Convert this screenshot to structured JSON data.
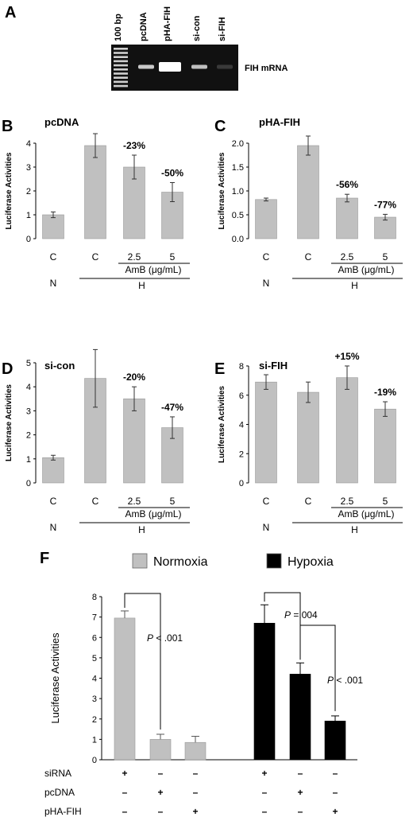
{
  "panel_a": {
    "label": "A",
    "lanes": [
      "100 bp",
      "pcDNA",
      "pHA-FIH",
      "si-con",
      "si-FIH"
    ],
    "band_label": "FIH mRNA",
    "band_intensity": [
      1,
      0.75,
      1.0,
      0.7,
      0.08
    ]
  },
  "chart_data": [
    {
      "panel": "B",
      "type": "bar",
      "title": "pcDNA",
      "ylabel": "Luciferase Activities",
      "categories": [
        "C",
        "C",
        "2.5",
        "5"
      ],
      "values": [
        1.0,
        3.9,
        3.0,
        1.95
      ],
      "errors": [
        0.12,
        0.5,
        0.5,
        0.4
      ],
      "annotations": [
        "",
        "",
        "-23%",
        "-50%"
      ],
      "ylim": [
        0,
        4
      ],
      "yticks": [
        "0",
        "1",
        "2",
        "3",
        "4"
      ],
      "group_labels": {
        "amb": "AmB (μg/mL)",
        "normoxia": "N",
        "hypoxia": "H"
      },
      "bar_color": "#c0c0c0"
    },
    {
      "panel": "C",
      "type": "bar",
      "title": "pHA-FIH",
      "ylabel": "Luciferase Activities",
      "categories": [
        "C",
        "C",
        "2.5",
        "5"
      ],
      "values": [
        0.82,
        1.95,
        0.85,
        0.45
      ],
      "errors": [
        0.03,
        0.2,
        0.08,
        0.06
      ],
      "annotations": [
        "",
        "",
        "-56%",
        "-77%"
      ],
      "ylim": [
        0,
        2
      ],
      "yticks": [
        "0.0",
        "0.5",
        "1.0",
        "1.5",
        "2.0"
      ],
      "group_labels": {
        "amb": "AmB (μg/mL)",
        "normoxia": "N",
        "hypoxia": "H"
      },
      "bar_color": "#c0c0c0"
    },
    {
      "panel": "D",
      "type": "bar",
      "title": "si-con",
      "ylabel": "Luciferase Activities",
      "categories": [
        "C",
        "C",
        "2.5",
        "5"
      ],
      "values": [
        1.05,
        4.35,
        3.5,
        2.3
      ],
      "errors": [
        0.1,
        1.2,
        0.5,
        0.45
      ],
      "annotations": [
        "",
        "",
        "-20%",
        "-47%"
      ],
      "ylim": [
        0,
        5
      ],
      "yticks": [
        "0",
        "1",
        "2",
        "3",
        "4",
        "5"
      ],
      "group_labels": {
        "amb": "AmB (μg/mL)",
        "normoxia": "N",
        "hypoxia": "H"
      },
      "bar_color": "#c0c0c0"
    },
    {
      "panel": "E",
      "type": "bar",
      "title": "si-FIH",
      "ylabel": "Luciferase Activities",
      "categories": [
        "C",
        "C",
        "2.5",
        "5"
      ],
      "values": [
        6.9,
        6.2,
        7.2,
        5.05
      ],
      "errors": [
        0.5,
        0.7,
        0.8,
        0.5
      ],
      "annotations": [
        "",
        "",
        "+15%",
        "-19%"
      ],
      "ylim": [
        0,
        8
      ],
      "yticks": [
        "0",
        "2",
        "4",
        "6",
        "8"
      ],
      "group_labels": {
        "amb": "AmB (μg/mL)",
        "normoxia": "N",
        "hypoxia": "H"
      },
      "bar_color": "#c0c0c0"
    },
    {
      "panel": "F",
      "type": "bar",
      "ylabel": "Luciferase Activities",
      "legend": [
        {
          "name": "Normoxia",
          "color": "#c0c0c0"
        },
        {
          "name": "Hypoxia",
          "color": "#000000"
        }
      ],
      "series": [
        {
          "name": "Normoxia",
          "values": [
            6.95,
            1.0,
            0.85
          ],
          "errors": [
            0.35,
            0.25,
            0.3
          ]
        },
        {
          "name": "Hypoxia",
          "values": [
            6.7,
            4.2,
            1.9
          ],
          "errors": [
            0.9,
            0.55,
            0.25
          ]
        }
      ],
      "ylim": [
        0,
        8
      ],
      "yticks": [
        "0",
        "1",
        "2",
        "3",
        "4",
        "5",
        "6",
        "7",
        "8"
      ],
      "rows": [
        {
          "label": "siRNA",
          "signs": [
            "+",
            "–",
            "–",
            "+",
            "–",
            "–"
          ]
        },
        {
          "label": "pcDNA",
          "signs": [
            "–",
            "+",
            "–",
            "–",
            "+",
            "–"
          ]
        },
        {
          "label": "pHA-FIH",
          "signs": [
            "–",
            "–",
            "+",
            "–",
            "–",
            "+"
          ]
        }
      ],
      "pvalues": [
        {
          "p": "P",
          "rest": " < .001"
        },
        {
          "p": "P",
          "rest": " =.004"
        },
        {
          "p": "P",
          "rest": " < .001"
        }
      ]
    }
  ]
}
